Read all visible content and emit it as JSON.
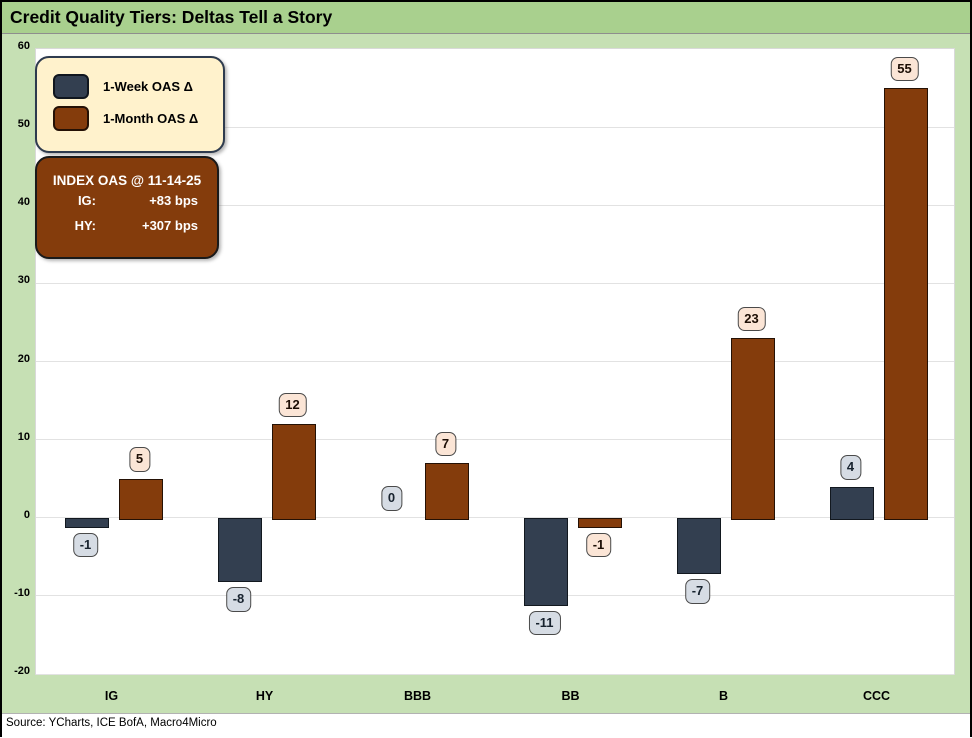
{
  "title": "Credit Quality Tiers: Deltas Tell a Story",
  "footer": {
    "source_text": "Source: YCharts, ICE BofA, Macro4Micro"
  },
  "legend": {
    "week_label": "1-Week OAS Δ",
    "month_label": "1-Month OAS Δ"
  },
  "index_box": {
    "heading": "INDEX OAS @ 11-14-25",
    "rows": [
      {
        "label": "IG:",
        "value": "+83 bps"
      },
      {
        "label": "HY:",
        "value": "+307 bps"
      }
    ]
  },
  "colors": {
    "week_bar": "#333F50",
    "month_bar": "#843C0C",
    "week_value_label_bg": "#D6DCE4",
    "month_value_label_bg": "#FBE5D6",
    "legend_bg": "#FFF2CC",
    "index_box_bg": "#843C0C",
    "title_bar_bg": "#A9D08E",
    "chart_bg": "#C6E0B4",
    "plot_bg": "#FFFFFF"
  },
  "chart_data": {
    "type": "bar",
    "title": "Credit Quality Tiers: Deltas Tell a Story",
    "categories": [
      "IG",
      "HY",
      "BBB",
      "BB",
      "B",
      "CCC"
    ],
    "series": [
      {
        "name": "1-Week OAS Δ",
        "values": [
          -1,
          -8,
          0,
          -11,
          -7,
          4
        ]
      },
      {
        "name": "1-Month OAS Δ",
        "values": [
          5,
          12,
          7,
          -1,
          23,
          55
        ]
      }
    ],
    "xlabel": "",
    "ylabel": "",
    "ylim": [
      -20,
      60
    ],
    "ytick_step": 10,
    "yticks": [
      60,
      50,
      40,
      30,
      20,
      10,
      0,
      -10,
      -20
    ],
    "grid": true,
    "legend_position": "top-left",
    "data_labels": true
  }
}
